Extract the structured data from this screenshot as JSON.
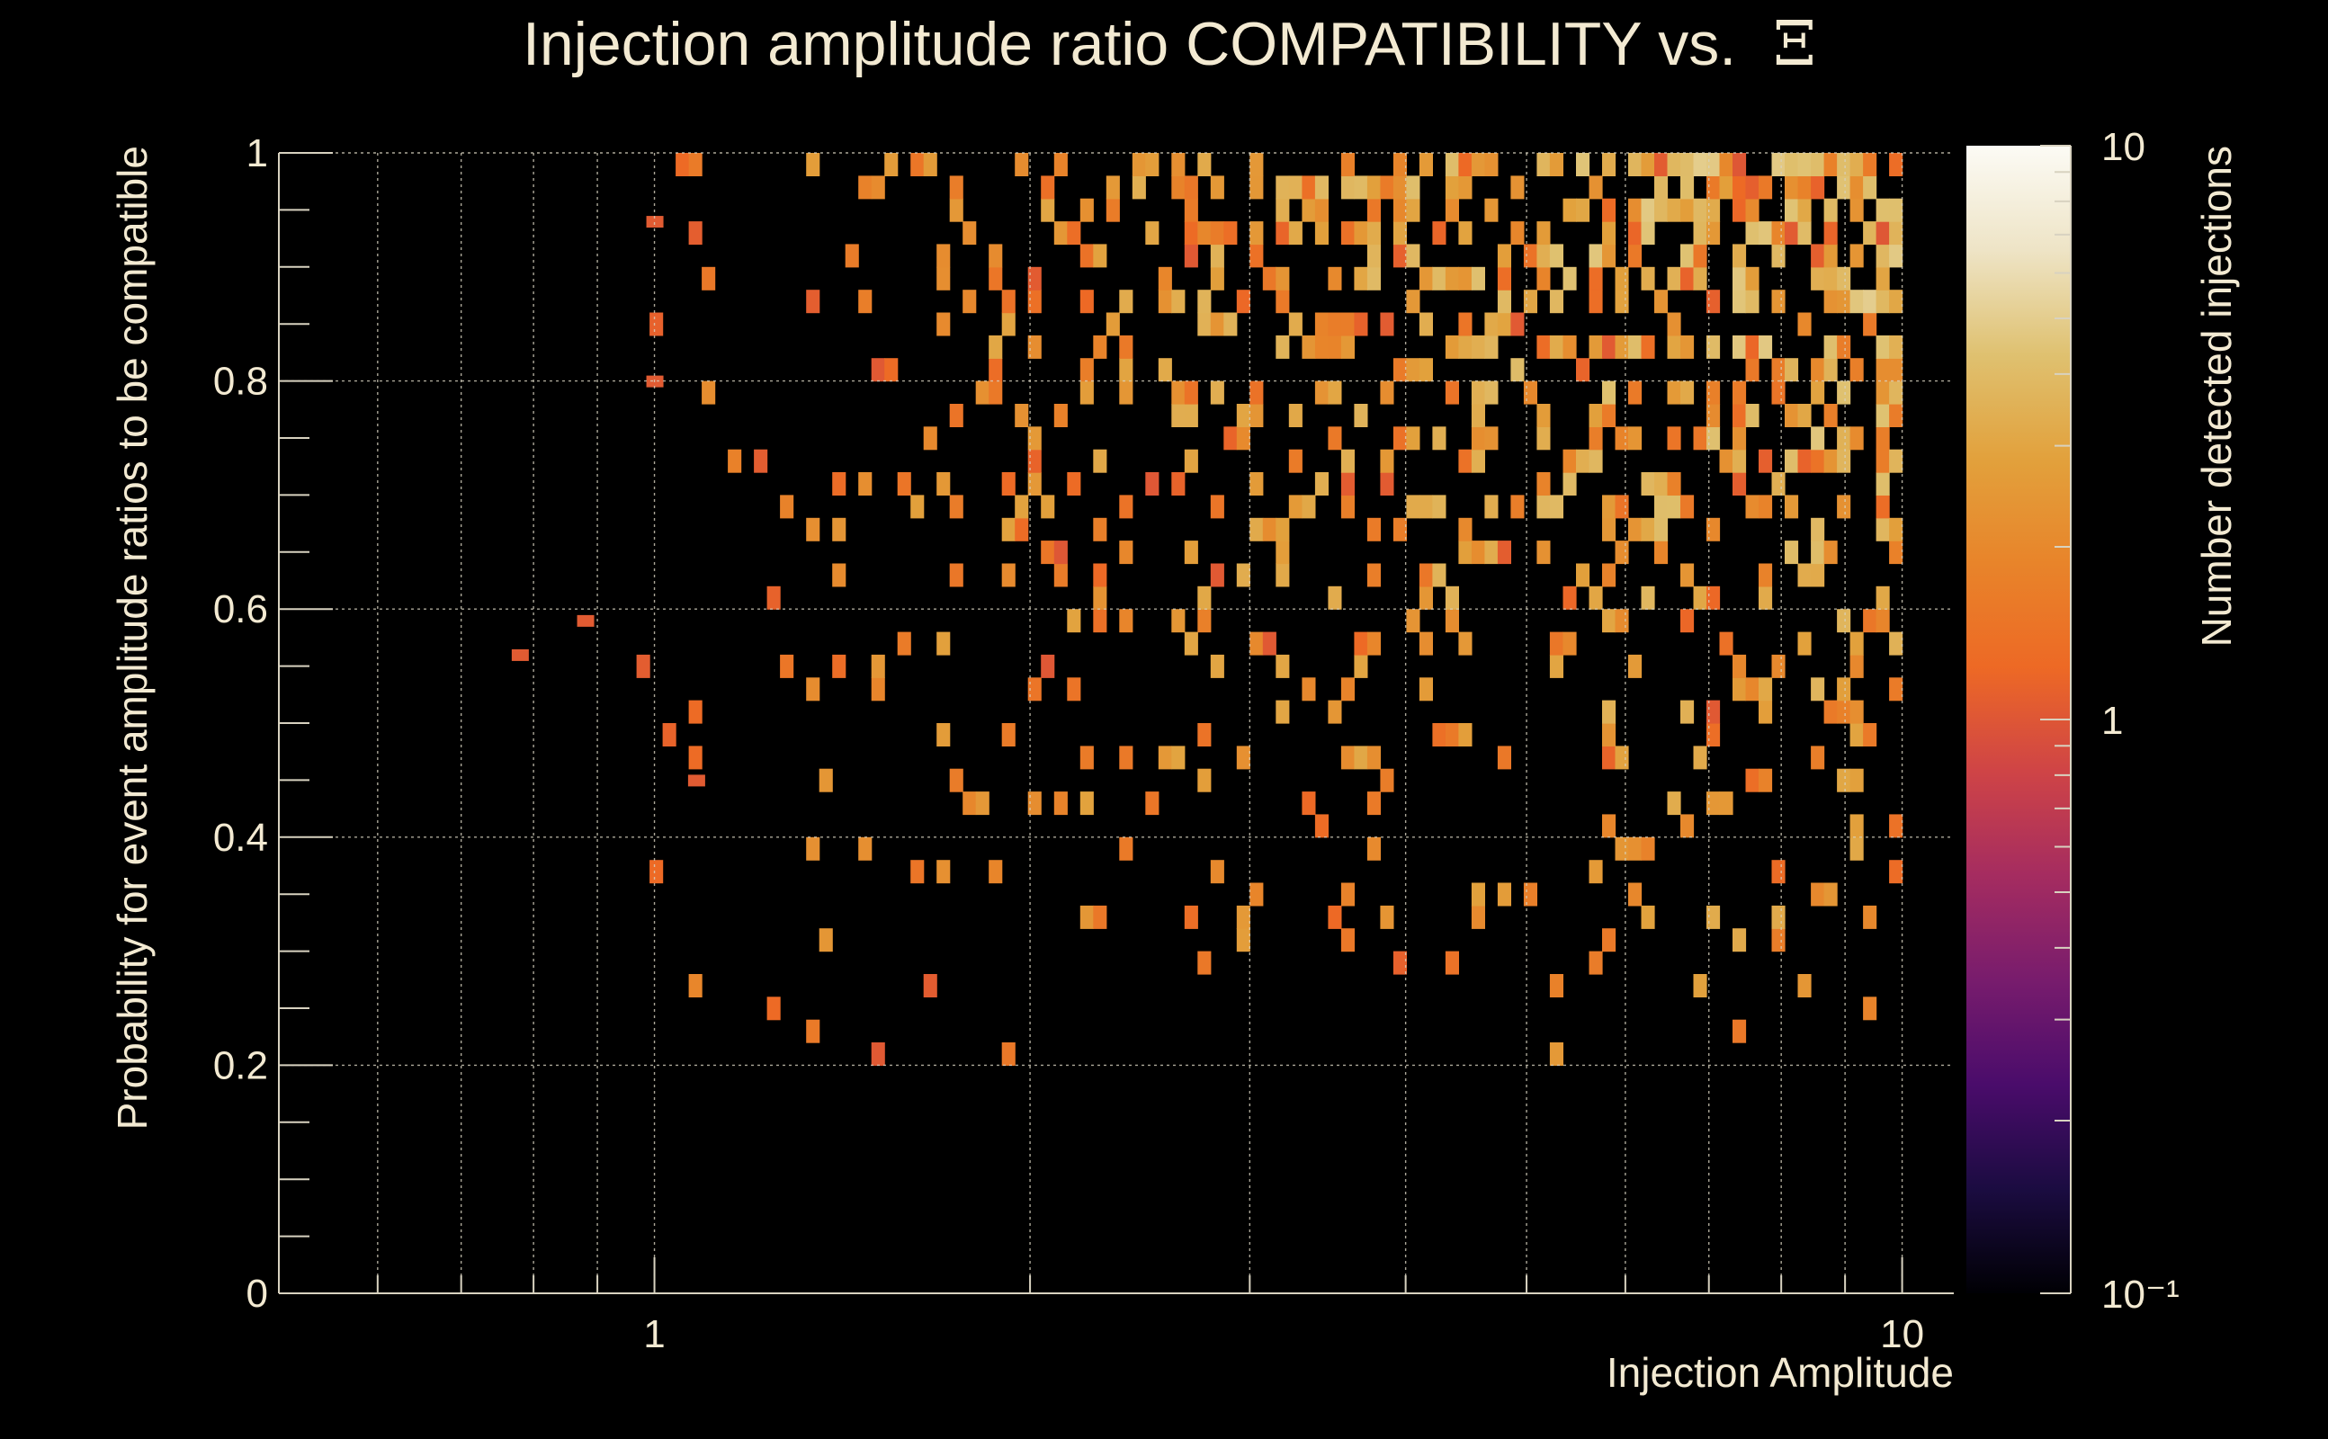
{
  "chart_data": {
    "type": "heatmap",
    "title": "Injection amplitude ratio COMPATIBILITY vs.",
    "title_symbol": "Ξ",
    "xlabel": "Injection Amplitude",
    "ylabel": "Probability for event amplitude ratios to be compatible",
    "zlabel": "Number detected injections",
    "x_scale": "log",
    "xlim": [
      0.5,
      11
    ],
    "ylim": [
      0,
      1
    ],
    "zlim": [
      0.1,
      10
    ],
    "x_bins": 100,
    "y_bins": 50,
    "x_tick_labels": [
      "1",
      "10"
    ],
    "x_tick_values": [
      1,
      10
    ],
    "y_tick_labels": [
      "0",
      "0.2",
      "0.4",
      "0.6",
      "0.8",
      "1"
    ],
    "y_tick_values": [
      0,
      0.2,
      0.4,
      0.6,
      0.8,
      1
    ],
    "z_tick_labels": [
      "10",
      "1",
      "10⁻¹"
    ],
    "z_tick_values": [
      10,
      1,
      0.1
    ],
    "palette": [
      "#000004",
      "#1b0c41",
      "#4a0c6b",
      "#781c6d",
      "#a52c60",
      "#cf4446",
      "#ed6925",
      "#e8842a",
      "#e2a13c",
      "#dfc170",
      "#eee4c6",
      "#fcfbf5"
    ],
    "description_of_density": "Counts between 1 and ~5 per bin; density rises with amplitude and probability; empty region below ~0.2 and left of amplitude ~1"
  }
}
